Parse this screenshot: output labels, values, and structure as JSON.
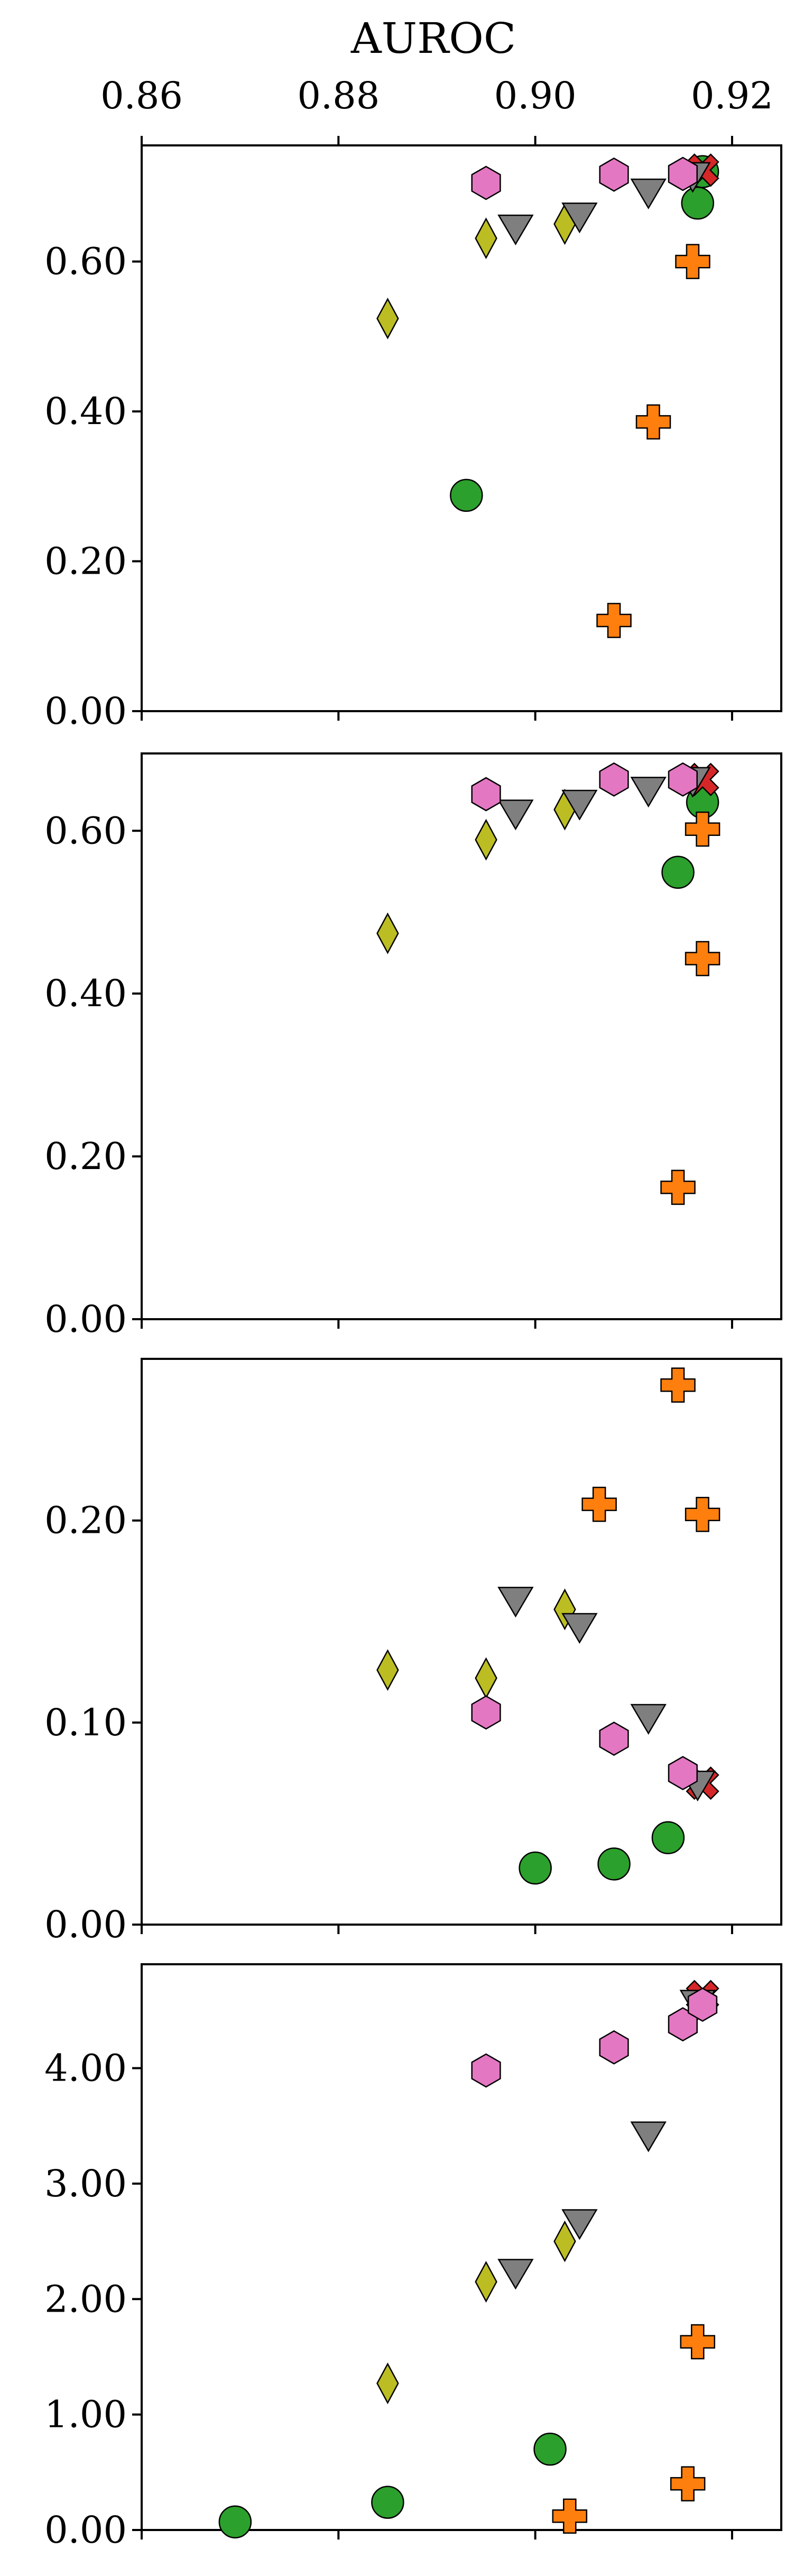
{
  "chart_data": {
    "type": "scatter",
    "xlabel": "AUROC",
    "x_range": [
      0.86,
      0.925
    ],
    "x_ticks": [
      0.86,
      0.88,
      0.9,
      0.92
    ],
    "x_tick_labels": [
      "0.86",
      "0.88",
      "0.90",
      "0.92"
    ],
    "grid": false,
    "legend": "none",
    "marker_styles": [
      {
        "marker": "circle",
        "color": "#2ca02c"
      },
      {
        "marker": "plus",
        "color": "#ff7f0e"
      },
      {
        "marker": "x",
        "color": "#d62728"
      },
      {
        "marker": "diamond",
        "color": "#bcbd22"
      },
      {
        "marker": "triangle-down",
        "color": "#7f7f7f"
      },
      {
        "marker": "hexagon",
        "color": "#e377c2"
      }
    ],
    "panels": [
      {
        "ylim": [
          0,
          0.755
        ],
        "y_ticks": [
          0,
          0.2,
          0.4,
          0.6
        ],
        "y_tick_labels": [
          "0.00",
          "0.20",
          "0.40",
          "0.60"
        ],
        "series": [
          {
            "marker": "circle",
            "points": [
              [
                0.893,
                0.288
              ],
              [
                0.9165,
                0.678
              ],
              [
                0.917,
                0.72
              ]
            ]
          },
          {
            "marker": "plus",
            "points": [
              [
                0.908,
                0.121
              ],
              [
                0.912,
                0.386
              ],
              [
                0.916,
                0.6
              ]
            ]
          },
          {
            "marker": "x",
            "points": [
              [
                0.917,
                0.722
              ]
            ]
          },
          {
            "marker": "diamond",
            "points": [
              [
                0.885,
                0.524
              ],
              [
                0.895,
                0.631
              ],
              [
                0.903,
                0.65
              ]
            ]
          },
          {
            "marker": "triangle-down",
            "points": [
              [
                0.898,
                0.646
              ],
              [
                0.9045,
                0.662
              ],
              [
                0.9115,
                0.694
              ],
              [
                0.916,
                0.716
              ]
            ]
          },
          {
            "marker": "hexagon",
            "points": [
              [
                0.895,
                0.705
              ],
              [
                0.908,
                0.716
              ],
              [
                0.915,
                0.717
              ]
            ]
          }
        ]
      },
      {
        "ylim": [
          0,
          0.695
        ],
        "y_ticks": [
          0,
          0.2,
          0.4,
          0.6
        ],
        "y_tick_labels": [
          "0.00",
          "0.20",
          "0.40",
          "0.60"
        ],
        "series": [
          {
            "marker": "circle",
            "points": [
              [
                0.9145,
                0.549
              ],
              [
                0.917,
                0.635
              ]
            ]
          },
          {
            "marker": "plus",
            "points": [
              [
                0.9145,
                0.162
              ],
              [
                0.917,
                0.443
              ],
              [
                0.917,
                0.602
              ]
            ]
          },
          {
            "marker": "x",
            "points": [
              [
                0.917,
                0.663
              ]
            ]
          },
          {
            "marker": "diamond",
            "points": [
              [
                0.885,
                0.474
              ],
              [
                0.895,
                0.589
              ],
              [
                0.903,
                0.626
              ]
            ]
          },
          {
            "marker": "triangle-down",
            "points": [
              [
                0.898,
                0.623
              ],
              [
                0.9045,
                0.635
              ],
              [
                0.9115,
                0.651
              ],
              [
                0.916,
                0.663
              ]
            ]
          },
          {
            "marker": "hexagon",
            "points": [
              [
                0.895,
                0.645
              ],
              [
                0.908,
                0.663
              ],
              [
                0.915,
                0.663
              ]
            ]
          }
        ]
      },
      {
        "ylim": [
          0,
          0.28
        ],
        "y_ticks": [
          0,
          0.1,
          0.2
        ],
        "y_tick_labels": [
          "0.00",
          "0.10",
          "0.20"
        ],
        "series": [
          {
            "marker": "circle",
            "points": [
              [
                0.9,
                0.028
              ],
              [
                0.908,
                0.03
              ],
              [
                0.9135,
                0.043
              ]
            ]
          },
          {
            "marker": "plus",
            "points": [
              [
                0.9065,
                0.208
              ],
              [
                0.9145,
                0.267
              ],
              [
                0.917,
                0.203
              ]
            ]
          },
          {
            "marker": "x",
            "points": [
              [
                0.917,
                0.07
              ]
            ]
          },
          {
            "marker": "diamond",
            "points": [
              [
                0.885,
                0.126
              ],
              [
                0.895,
                0.122
              ],
              [
                0.903,
                0.156
              ]
            ]
          },
          {
            "marker": "triangle-down",
            "points": [
              [
                0.898,
                0.161
              ],
              [
                0.9045,
                0.148
              ],
              [
                0.9115,
                0.103
              ],
              [
                0.9165,
                0.07
              ]
            ]
          },
          {
            "marker": "hexagon",
            "points": [
              [
                0.895,
                0.105
              ],
              [
                0.908,
                0.092
              ],
              [
                0.915,
                0.075
              ]
            ]
          }
        ]
      },
      {
        "ylim": [
          0,
          4.9
        ],
        "y_ticks": [
          0,
          1,
          2,
          3,
          4
        ],
        "y_tick_labels": [
          "0.00",
          "1.00",
          "2.00",
          "3.00",
          "4.00"
        ],
        "series": [
          {
            "marker": "circle",
            "points": [
              [
                0.8695,
                0.07
              ],
              [
                0.885,
                0.24
              ],
              [
                0.9015,
                0.7
              ]
            ]
          },
          {
            "marker": "plus",
            "points": [
              [
                0.9035,
                0.12
              ],
              [
                0.9155,
                0.4
              ],
              [
                0.9165,
                1.63
              ]
            ]
          },
          {
            "marker": "x",
            "points": [
              [
                0.917,
                4.62
              ]
            ]
          },
          {
            "marker": "diamond",
            "points": [
              [
                0.885,
                1.27
              ],
              [
                0.895,
                2.15
              ],
              [
                0.903,
                2.5
              ]
            ]
          },
          {
            "marker": "triangle-down",
            "points": [
              [
                0.898,
                2.24
              ],
              [
                0.9045,
                2.67
              ],
              [
                0.9115,
                3.43
              ],
              [
                0.9165,
                4.57
              ]
            ]
          },
          {
            "marker": "hexagon",
            "points": [
              [
                0.895,
                3.98
              ],
              [
                0.908,
                4.18
              ],
              [
                0.915,
                4.38
              ],
              [
                0.917,
                4.55
              ]
            ]
          }
        ]
      }
    ]
  }
}
